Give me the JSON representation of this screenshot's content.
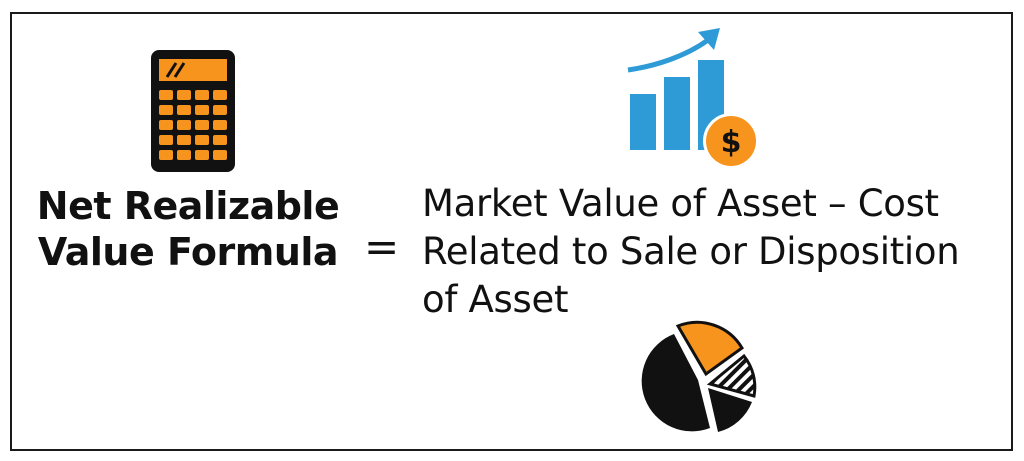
{
  "formula": {
    "lhs_lines": [
      "Net Realizable",
      "Value Formula"
    ],
    "equals": "=",
    "rhs_lines": [
      "Market Value of Asset – Cost",
      "Related to Sale or Disposition",
      "of Asset"
    ]
  },
  "icons": {
    "calculator": "calculator-icon",
    "growth_chart": "bar-chart-growth-icon",
    "dollar_coin": "dollar-coin-icon",
    "pie_chart": "pie-chart-icon",
    "dollar_symbol": "$"
  },
  "colors": {
    "accent_orange": "#f7941d",
    "chart_blue": "#2e9bd6",
    "ink": "#111111"
  }
}
